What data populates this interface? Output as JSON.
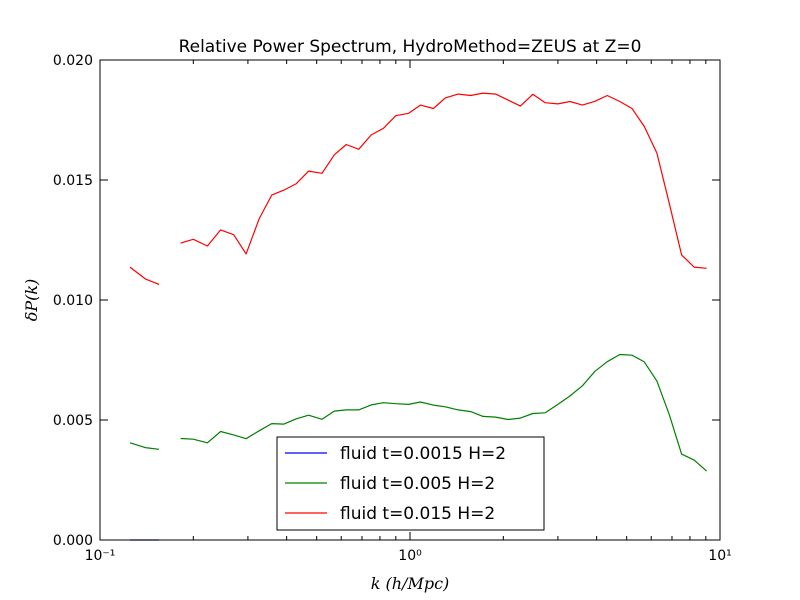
{
  "chart_data": {
    "type": "line",
    "title": "Relative Power Spectrum, HydroMethod=ZEUS at Z=0",
    "xlabel": "k (h/Mpc)",
    "ylabel": "δP(k)",
    "xscale": "log",
    "xlim": [
      0.1,
      10
    ],
    "ylim": [
      0,
      0.02
    ],
    "grid": false,
    "legend_position": "lower-center",
    "x_ticks": [
      {
        "value": 0.1,
        "label": "10⁻¹"
      },
      {
        "value": 1,
        "label": "10⁰"
      },
      {
        "value": 10,
        "label": "10¹"
      }
    ],
    "y_ticks": [
      {
        "value": 0,
        "label": "0.000"
      },
      {
        "value": 0.005,
        "label": "0.005"
      },
      {
        "value": 0.01,
        "label": "0.010"
      },
      {
        "value": 0.015,
        "label": "0.015"
      },
      {
        "value": 0.02,
        "label": "0.020"
      }
    ],
    "series": [
      {
        "name": "fluid t=0.0015 H=2",
        "color": "#0000ff",
        "segments": [
          [
            [
              0.125,
              0.0
            ],
            [
              0.14,
              0.0
            ],
            [
              0.155,
              0.0
            ]
          ]
        ]
      },
      {
        "name": "fluid t=0.005 H=2",
        "color": "#008000",
        "segments": [
          [
            [
              0.125,
              0.00405
            ],
            [
              0.14,
              0.00385
            ],
            [
              0.155,
              0.00378
            ]
          ],
          [
            [
              0.182,
              0.00423
            ],
            [
              0.2,
              0.0042
            ],
            [
              0.222,
              0.00405
            ],
            [
              0.245,
              0.00452
            ],
            [
              0.27,
              0.00438
            ],
            [
              0.296,
              0.00422
            ],
            [
              0.326,
              0.00455
            ],
            [
              0.358,
              0.00485
            ],
            [
              0.392,
              0.00483
            ],
            [
              0.43,
              0.00505
            ],
            [
              0.471,
              0.0052
            ],
            [
              0.52,
              0.00503
            ],
            [
              0.57,
              0.00537
            ],
            [
              0.623,
              0.00542
            ],
            [
              0.683,
              0.00542
            ],
            [
              0.75,
              0.00563
            ],
            [
              0.82,
              0.00572
            ],
            [
              0.9,
              0.00568
            ],
            [
              0.99,
              0.00565
            ],
            [
              1.08,
              0.00575
            ],
            [
              1.19,
              0.00562
            ],
            [
              1.3,
              0.00555
            ],
            [
              1.43,
              0.00542
            ],
            [
              1.57,
              0.00535
            ],
            [
              1.72,
              0.00515
            ],
            [
              1.89,
              0.00512
            ],
            [
              2.07,
              0.00502
            ],
            [
              2.27,
              0.00508
            ],
            [
              2.49,
              0.00527
            ],
            [
              2.73,
              0.0053
            ],
            [
              3.0,
              0.00565
            ],
            [
              3.28,
              0.006
            ],
            [
              3.6,
              0.00643
            ],
            [
              3.95,
              0.00703
            ],
            [
              4.33,
              0.00743
            ],
            [
              4.75,
              0.00773
            ],
            [
              5.2,
              0.0077
            ],
            [
              5.7,
              0.00742
            ],
            [
              6.26,
              0.00662
            ],
            [
              6.86,
              0.00522
            ],
            [
              7.52,
              0.00358
            ],
            [
              8.25,
              0.00333
            ],
            [
              9.05,
              0.00287
            ]
          ]
        ]
      },
      {
        "name": "fluid t=0.015 H=2",
        "color": "#ff0000",
        "segments": [
          [
            [
              0.125,
              0.01137
            ],
            [
              0.14,
              0.01088
            ],
            [
              0.155,
              0.01065
            ]
          ],
          [
            [
              0.182,
              0.01237
            ],
            [
              0.2,
              0.01253
            ],
            [
              0.222,
              0.01225
            ],
            [
              0.245,
              0.01292
            ],
            [
              0.27,
              0.01272
            ],
            [
              0.296,
              0.01192
            ],
            [
              0.326,
              0.01338
            ],
            [
              0.358,
              0.01437
            ],
            [
              0.392,
              0.01458
            ],
            [
              0.43,
              0.01485
            ],
            [
              0.471,
              0.01537
            ],
            [
              0.52,
              0.01528
            ],
            [
              0.57,
              0.01605
            ],
            [
              0.623,
              0.01648
            ],
            [
              0.683,
              0.01628
            ],
            [
              0.75,
              0.01688
            ],
            [
              0.82,
              0.01715
            ],
            [
              0.9,
              0.01768
            ],
            [
              0.99,
              0.01778
            ],
            [
              1.08,
              0.01812
            ],
            [
              1.19,
              0.01798
            ],
            [
              1.3,
              0.01842
            ],
            [
              1.43,
              0.01858
            ],
            [
              1.57,
              0.01852
            ],
            [
              1.72,
              0.01862
            ],
            [
              1.89,
              0.01858
            ],
            [
              2.07,
              0.01833
            ],
            [
              2.27,
              0.01808
            ],
            [
              2.49,
              0.01857
            ],
            [
              2.73,
              0.01822
            ],
            [
              3.0,
              0.01817
            ],
            [
              3.28,
              0.01827
            ],
            [
              3.6,
              0.01812
            ],
            [
              3.95,
              0.01828
            ],
            [
              4.33,
              0.01852
            ],
            [
              4.75,
              0.01827
            ],
            [
              5.2,
              0.01798
            ],
            [
              5.7,
              0.01723
            ],
            [
              6.26,
              0.01612
            ],
            [
              6.86,
              0.01402
            ],
            [
              7.52,
              0.01188
            ],
            [
              8.25,
              0.01137
            ],
            [
              9.05,
              0.01132
            ]
          ]
        ]
      }
    ]
  }
}
